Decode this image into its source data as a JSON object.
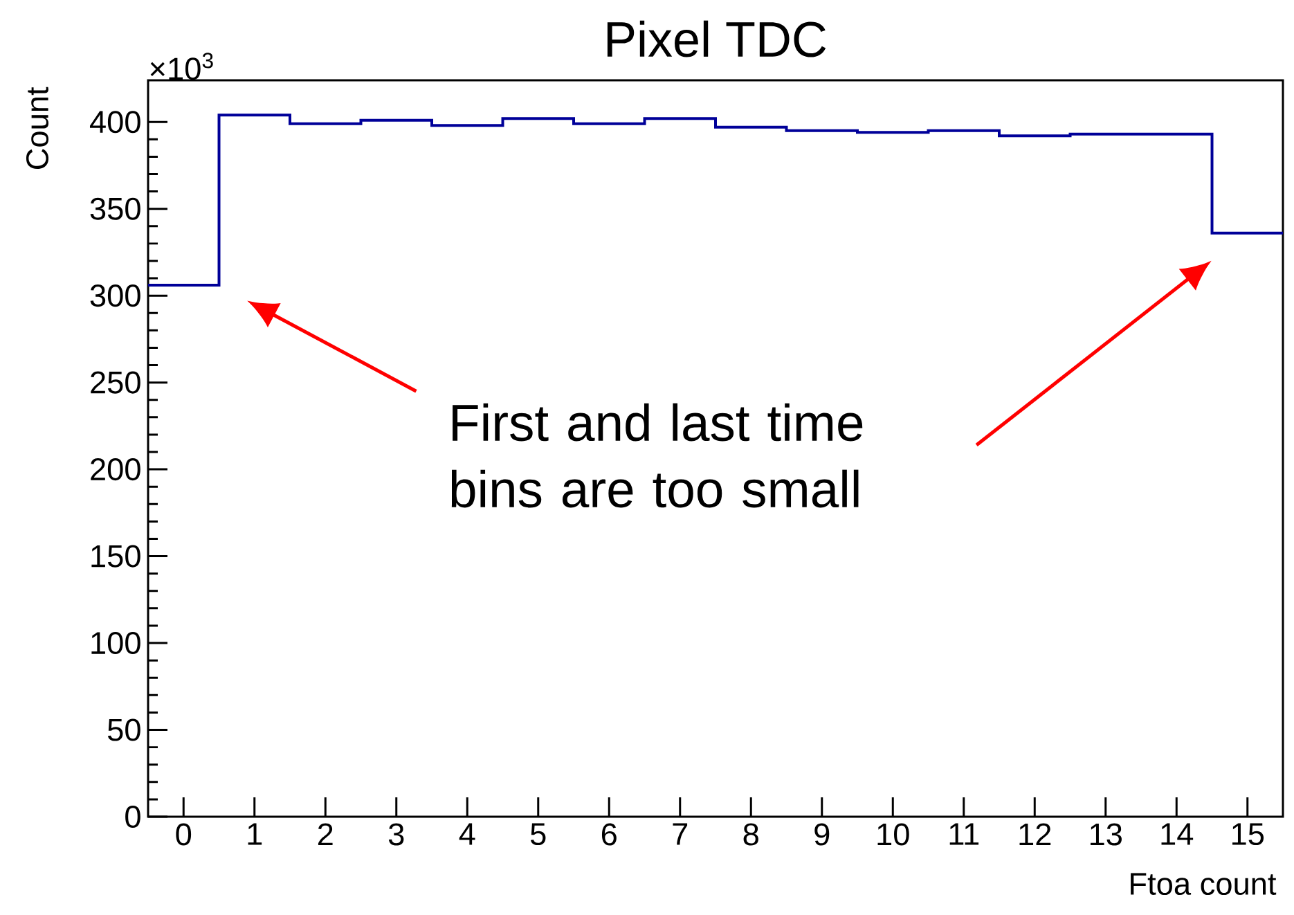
{
  "chart_data": {
    "type": "histogram",
    "title": "Pixel TDC",
    "xlabel": "Ftoa count",
    "ylabel": "Count",
    "bins": [
      -0.5,
      0.5,
      1.5,
      2.5,
      3.5,
      4.5,
      5.5,
      6.5,
      7.5,
      8.5,
      9.5,
      10.5,
      11.5,
      12.5,
      13.5,
      14.5,
      15.5
    ],
    "values": [
      306,
      404,
      399,
      401,
      398,
      402,
      399,
      402,
      397,
      395,
      394,
      395,
      392,
      393,
      393,
      336
    ],
    "color": "#000099",
    "xlim": [
      -0.5,
      15.5
    ],
    "xticks": [
      0,
      1,
      2,
      3,
      4,
      5,
      6,
      7,
      8,
      9,
      10,
      11,
      12,
      13,
      14,
      15
    ],
    "ylim": [
      0,
      424
    ],
    "yticks": [
      0,
      50,
      100,
      150,
      200,
      250,
      300,
      350,
      400
    ],
    "annotations": [
      "×10$^{3}$",
      "First and last time bins are too small"
    ],
    "grid": false
  }
}
